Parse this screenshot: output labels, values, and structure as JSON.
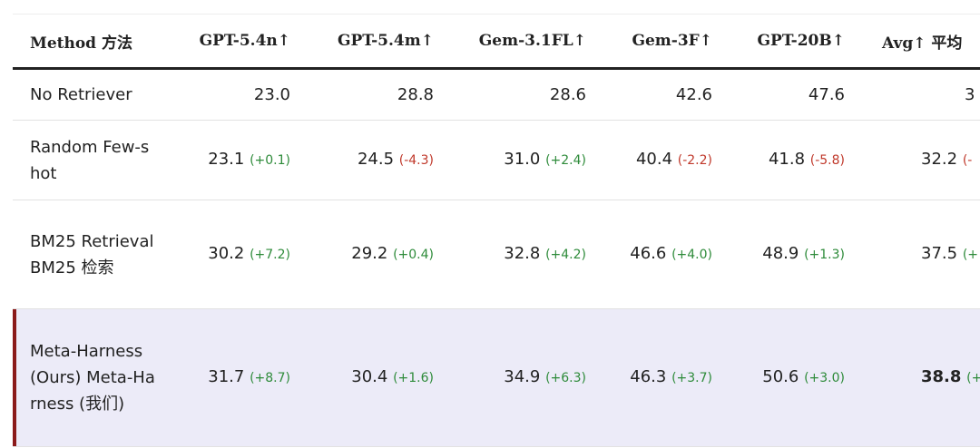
{
  "table": {
    "header": [
      "Method 方法",
      "GPT-5.4n↑",
      "GPT-5.4m↑",
      "Gem-3.1FL↑",
      "Gem-3F↑",
      "GPT-20B↑",
      "Avg↑ 平均"
    ],
    "rows": [
      {
        "method": "No Retriever",
        "cells": [
          {
            "value": "23.0"
          },
          {
            "value": "28.8"
          },
          {
            "value": "28.6"
          },
          {
            "value": "42.6"
          },
          {
            "value": "47.6"
          },
          {
            "value": "3"
          }
        ]
      },
      {
        "method": "Random Few-shot",
        "cells": [
          {
            "value": "23.1",
            "delta": "(+0.1)"
          },
          {
            "value": "24.5",
            "delta": "(-4.3)"
          },
          {
            "value": "31.0",
            "delta": "(+2.4)"
          },
          {
            "value": "40.4",
            "delta": "(-2.2)"
          },
          {
            "value": "41.8",
            "delta": "(-5.8)"
          },
          {
            "value": "32.2",
            "delta": "(-"
          }
        ]
      },
      {
        "method": "BM25 Retrieval BM25 检索",
        "cells": [
          {
            "value": "30.2",
            "delta": "(+7.2)"
          },
          {
            "value": "29.2",
            "delta": "(+0.4)"
          },
          {
            "value": "32.8",
            "delta": "(+4.2)"
          },
          {
            "value": "46.6",
            "delta": "(+4.0)"
          },
          {
            "value": "48.9",
            "delta": "(+1.3)"
          },
          {
            "value": "37.5",
            "delta": "(+"
          }
        ]
      },
      {
        "method": "Meta-Harness (Ours) Meta-Harness (我们)",
        "highlight": true,
        "cells": [
          {
            "value": "31.7",
            "delta": "(+8.7)"
          },
          {
            "value": "30.4",
            "delta": "(+1.6)"
          },
          {
            "value": "34.9",
            "delta": "(+6.3)"
          },
          {
            "value": "46.3",
            "delta": "(+3.7)"
          },
          {
            "value": "50.6",
            "delta": "(+3.0)"
          },
          {
            "value": "38.8",
            "delta": "(+",
            "bold": true
          }
        ]
      }
    ]
  }
}
